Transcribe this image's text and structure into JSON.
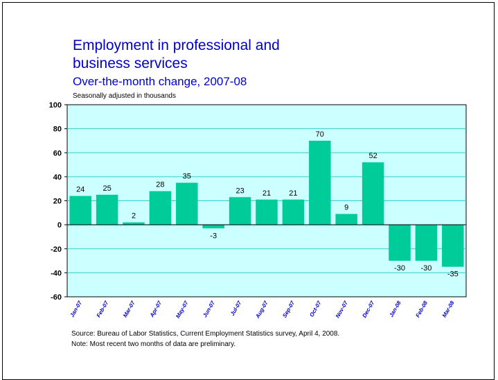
{
  "chart_data": {
    "type": "bar",
    "title": "Employment in professional and business services",
    "title_lines": [
      "Employment in professional and",
      "business services"
    ],
    "subtitle": "Over-the-month change, 2007-08",
    "units_label": "Seasonally adjusted in thousands",
    "categories": [
      "Jan-07",
      "Feb-07",
      "Mar-07",
      "Apr-07",
      "May-07",
      "Jun-07",
      "Jul-07",
      "Aug-07",
      "Sep-07",
      "Oct-07",
      "Nov-07",
      "Dec-07",
      "Jan-08",
      "Feb-08",
      "Mar-08"
    ],
    "values": [
      24,
      25,
      2,
      28,
      35,
      -3,
      23,
      21,
      21,
      70,
      9,
      52,
      -30,
      -30,
      -35
    ],
    "ylim": [
      -60,
      100
    ],
    "yticks": [
      -60,
      -40,
      -20,
      0,
      20,
      40,
      60,
      80,
      100
    ],
    "grid": true,
    "colors": {
      "bar": "#00cc99",
      "plot_bg": "#ccffff",
      "title": "#0000cc",
      "category_label": "#0000cc"
    }
  },
  "source_text": "Source:  Bureau of Labor Statistics, Current Employment Statistics survey, April 4, 2008.",
  "note_text": "Note:  Most recent two months of data are preliminary."
}
